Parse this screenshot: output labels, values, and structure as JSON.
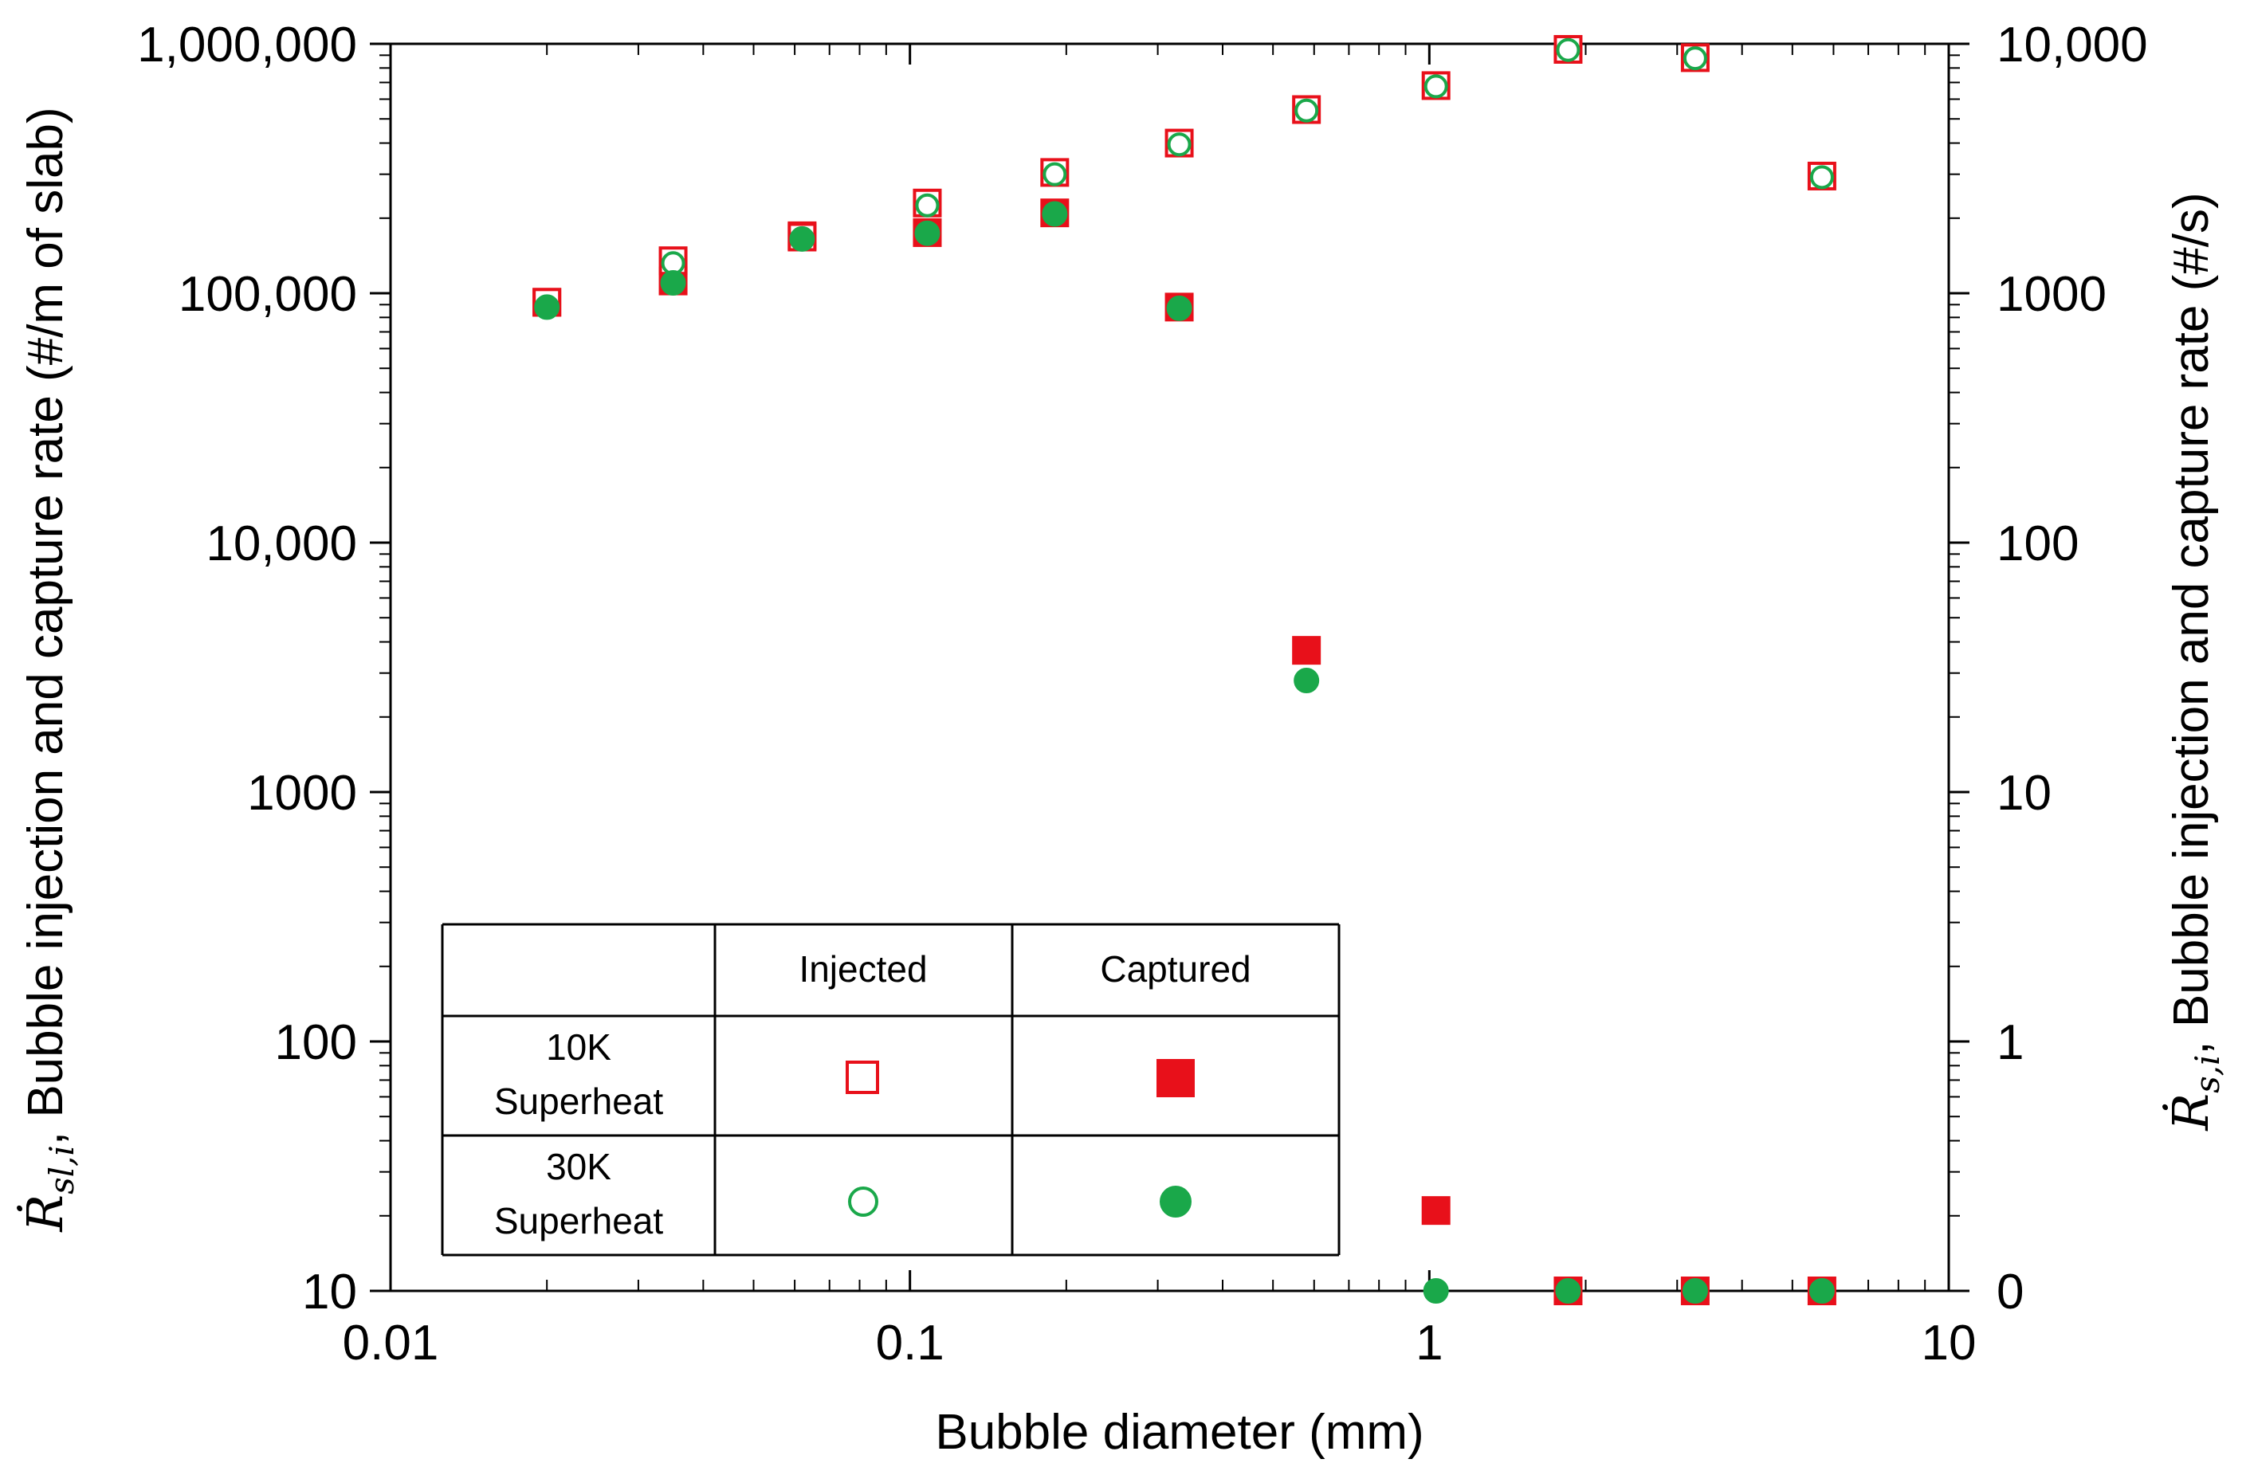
{
  "chart_data": {
    "type": "scatter",
    "title": "",
    "xlabel": "Bubble diameter (mm)",
    "ylabel_left": {
      "symbol": "Ṙ",
      "subscript": "sl,i",
      "text": ", Bubble injection and capture rate (#/m of slab)"
    },
    "ylabel_right": {
      "symbol": "Ṙ",
      "subscript": "s,i",
      "text": ", Bubble injection and capture rate (#/s)"
    },
    "x_scale": "log",
    "y_scale": "log",
    "xlim": [
      0.01,
      10
    ],
    "ylim_left": [
      10,
      1000000
    ],
    "ylim_right_labels": [
      {
        "value": 10,
        "label": "0"
      },
      {
        "value": 100,
        "label": "1"
      },
      {
        "value": 1000,
        "label": "10"
      },
      {
        "value": 10000,
        "label": "100"
      },
      {
        "value": 100000,
        "label": "1000"
      },
      {
        "value": 1000000,
        "label": "10,000"
      }
    ],
    "x_tick_labels": [
      {
        "value": 0.01,
        "label": "0.01"
      },
      {
        "value": 0.1,
        "label": "0.1"
      },
      {
        "value": 1,
        "label": "1"
      },
      {
        "value": 10,
        "label": "10"
      }
    ],
    "y_tick_labels_left": [
      {
        "value": 10,
        "label": "10"
      },
      {
        "value": 100,
        "label": "100"
      },
      {
        "value": 1000,
        "label": "1000"
      },
      {
        "value": 10000,
        "label": "10,000"
      },
      {
        "value": 100000,
        "label": "100,000"
      },
      {
        "value": 1000000,
        "label": "1,000,000"
      }
    ],
    "series": [
      {
        "name": "10K Superheat Injected",
        "marker": "square-open",
        "color": "#e8101a",
        "x": [
          0.02,
          0.035,
          0.062,
          0.108,
          0.19,
          0.33,
          0.58,
          1.03,
          1.85,
          3.25,
          5.7
        ],
        "y": [
          92000,
          135000,
          168000,
          230000,
          305000,
          400000,
          545000,
          680000,
          950000,
          880000,
          295000
        ]
      },
      {
        "name": "10K Superheat Captured",
        "marker": "square-filled",
        "color": "#e8101a",
        "x": [
          0.02,
          0.035,
          0.062,
          0.108,
          0.19,
          0.33,
          0.58,
          1.03,
          1.85,
          3.25,
          5.7
        ],
        "y": [
          92000,
          112000,
          170000,
          175000,
          210000,
          88000,
          3700,
          21,
          10,
          10,
          10
        ]
      },
      {
        "name": "30K Superheat Injected",
        "marker": "circle-open",
        "color": "#1aa84a",
        "x": [
          0.02,
          0.035,
          0.062,
          0.108,
          0.19,
          0.33,
          0.58,
          1.03,
          1.85,
          3.25,
          5.7
        ],
        "y": [
          88000,
          132000,
          165000,
          225000,
          300000,
          395000,
          540000,
          675000,
          945000,
          875000,
          292000
        ]
      },
      {
        "name": "30K Superheat Captured",
        "marker": "circle-filled",
        "color": "#1aa84a",
        "x": [
          0.02,
          0.035,
          0.062,
          0.108,
          0.19,
          0.33,
          0.58,
          1.03,
          1.85,
          3.25,
          5.7
        ],
        "y": [
          88000,
          110000,
          165000,
          174000,
          208000,
          87000,
          2800,
          10,
          10,
          10,
          10
        ]
      }
    ],
    "legend": {
      "placement": "bottom-left",
      "columns": [
        "Injected",
        "Captured"
      ],
      "rows": [
        {
          "label_line1": "10K",
          "label_line2": "Superheat"
        },
        {
          "label_line1": "30K",
          "label_line2": "Superheat"
        }
      ]
    }
  },
  "colors": {
    "red": "#e8101a",
    "green": "#1aa84a",
    "axis": "#000000"
  }
}
